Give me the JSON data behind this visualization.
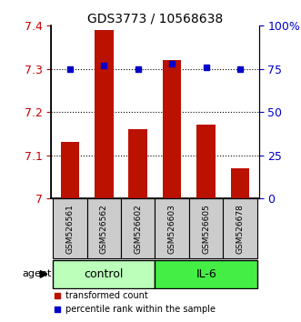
{
  "title": "GDS3773 / 10568638",
  "samples": [
    "GSM526561",
    "GSM526562",
    "GSM526602",
    "GSM526603",
    "GSM526605",
    "GSM526678"
  ],
  "bar_values": [
    7.13,
    7.39,
    7.16,
    7.32,
    7.17,
    7.07
  ],
  "percentile_values": [
    75,
    77,
    75,
    78,
    76,
    75
  ],
  "bar_color": "#bb1100",
  "dot_color": "#0000cc",
  "ylim_left": [
    7.0,
    7.4
  ],
  "ylim_right": [
    0,
    100
  ],
  "yticks_left": [
    7.0,
    7.1,
    7.2,
    7.3,
    7.4
  ],
  "yticks_right": [
    0,
    25,
    50,
    75,
    100
  ],
  "ytick_labels_left": [
    "7",
    "7.1",
    "7.2",
    "7.3",
    "7.4"
  ],
  "ytick_labels_right": [
    "0",
    "25",
    "50",
    "75",
    "100%"
  ],
  "groups": [
    {
      "label": "control",
      "indices": [
        0,
        1,
        2
      ],
      "color": "#bbffbb"
    },
    {
      "label": "IL-6",
      "indices": [
        3,
        4,
        5
      ],
      "color": "#44ee44"
    }
  ],
  "agent_label": "agent",
  "legend_items": [
    {
      "label": "transformed count",
      "color": "#bb1100"
    },
    {
      "label": "percentile rank within the sample",
      "color": "#0000cc"
    }
  ],
  "bar_width": 0.55,
  "background_color": "#ffffff",
  "sample_box_color": "#cccccc",
  "sample_box_edge": "#000000"
}
